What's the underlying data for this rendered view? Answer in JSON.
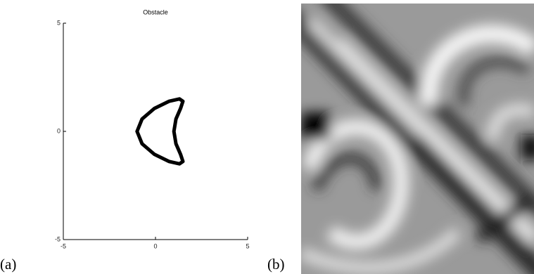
{
  "chart_data": [
    {
      "type": "line",
      "title": "Obstacle",
      "x": [
        -1,
        -0.73,
        -0.06,
        0.73,
        1.3,
        1.49,
        1.36,
        1.11,
        1,
        1.11,
        1.36,
        1.49,
        1.3,
        0.73,
        -0.06,
        -0.73,
        -1
      ],
      "series": [
        {
          "color": "#000000",
          "values": [
            0,
            0.57,
            1.06,
            1.39,
            1.5,
            1.39,
            1.06,
            0.57,
            0,
            -0.57,
            -1.06,
            -1.39,
            -1.5,
            -1.39,
            -1.06,
            -0.57,
            0
          ]
        }
      ],
      "xlim": [
        -5,
        5
      ],
      "ylim": [
        -5,
        5
      ],
      "xticks": [
        -5,
        0,
        5
      ],
      "yticks": [
        -5,
        0,
        5
      ]
    }
  ],
  "panels": {
    "a": "(a)",
    "b": "(b)"
  }
}
